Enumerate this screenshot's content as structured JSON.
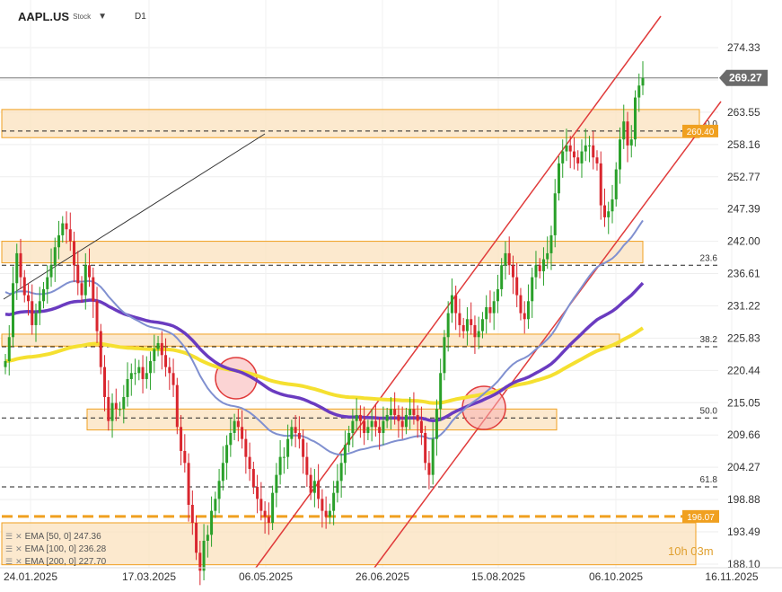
{
  "header": {
    "symbol": "AAPL.US",
    "type_tag": "Stock",
    "timeframe": "D1"
  },
  "price_tag": {
    "value": "269.27",
    "color": "#6b6b6b"
  },
  "level_tags": [
    {
      "text": "196.07",
      "color": "#f0a020"
    },
    {
      "text": "260.40",
      "color": "#f0a020"
    }
  ],
  "legend": [
    {
      "label": "EMA [50, 0] 247.36",
      "color": "#8090d0"
    },
    {
      "label": "EMA [100, 0] 236.28",
      "color": "#6a3bc0"
    },
    {
      "label": "EMA [200, 0] 227.70",
      "color": "#f5e030"
    }
  ],
  "timer": "10h 03m",
  "chart_data": {
    "type": "candlestick",
    "timeframe": "D1",
    "y_ticks": [
      274.33,
      268.94,
      263.55,
      258.16,
      252.77,
      247.39,
      242.0,
      236.61,
      231.22,
      225.83,
      220.44,
      215.05,
      209.66,
      204.27,
      198.88,
      193.49,
      188.1
    ],
    "y_tick_labels": [
      "274.33",
      "",
      "263.55",
      "258.16",
      "252.77",
      "247.39",
      "242.00",
      "236.61",
      "231.22",
      "225.83",
      "220.44",
      "215.05",
      "209.66",
      "204.27",
      "198.88",
      "193.49",
      "188.10"
    ],
    "x_labels": [
      "24.01.2025",
      "17.03.2025",
      "06.05.2025",
      "26.06.2025",
      "15.08.2025",
      "06.10.2025",
      "16.11.2025"
    ],
    "fib_levels": [
      {
        "label": "0.0",
        "value": 260.4
      },
      {
        "label": "23.6",
        "value": 238.0
      },
      {
        "label": "38.2",
        "value": 224.4
      },
      {
        "label": "50.0",
        "value": 212.5
      },
      {
        "label": "61.8",
        "value": 201.0
      }
    ],
    "support_zones": [
      {
        "low": 259.3,
        "high": 264.0
      },
      {
        "low": 238.4,
        "high": 242.0
      },
      {
        "low": 224.5,
        "high": 226.5
      },
      {
        "low": 210.5,
        "high": 214.0
      },
      {
        "low": 188.0,
        "high": 195.0
      }
    ],
    "dashed_level": 196.07,
    "last_price": 269.27,
    "ema_legend": [
      "EMA [50, 0] 247.36",
      "EMA [100, 0] 236.28",
      "EMA [200, 0] 227.70"
    ],
    "closes": [
      222,
      226,
      235,
      240,
      236,
      233,
      232,
      228,
      230,
      232,
      234,
      236,
      238,
      241,
      243,
      245,
      244,
      242,
      238,
      235,
      233,
      238,
      236,
      232,
      227,
      221,
      216,
      212,
      215,
      214,
      214,
      216,
      219,
      220,
      220,
      221,
      219,
      220,
      222,
      224,
      225,
      223,
      221,
      220,
      218,
      211,
      207,
      205,
      198,
      195,
      190,
      187,
      192,
      193,
      197,
      199,
      202,
      205,
      208,
      210,
      212,
      211,
      209,
      206,
      204,
      201,
      199,
      197,
      196,
      195,
      200,
      203,
      206,
      206,
      209,
      211,
      210,
      209,
      206,
      203,
      200,
      202,
      199,
      197,
      196,
      197,
      200,
      202,
      205,
      208,
      210,
      212,
      213,
      212,
      210,
      211,
      212,
      211,
      210,
      212,
      213,
      214,
      213,
      212,
      211,
      213,
      214,
      213,
      212,
      210,
      205,
      203,
      209,
      214,
      220,
      226,
      230,
      233,
      230,
      228,
      227,
      229,
      228,
      226,
      227,
      229,
      231,
      230,
      232,
      234,
      238,
      240,
      238,
      236,
      233,
      230,
      229,
      232,
      236,
      238,
      237,
      239,
      240,
      243,
      250,
      255,
      257,
      258,
      257,
      256,
      255,
      257,
      258,
      258,
      256,
      255,
      248,
      246,
      247,
      249,
      254,
      259,
      262,
      258,
      259,
      266,
      268,
      269.27
    ]
  }
}
